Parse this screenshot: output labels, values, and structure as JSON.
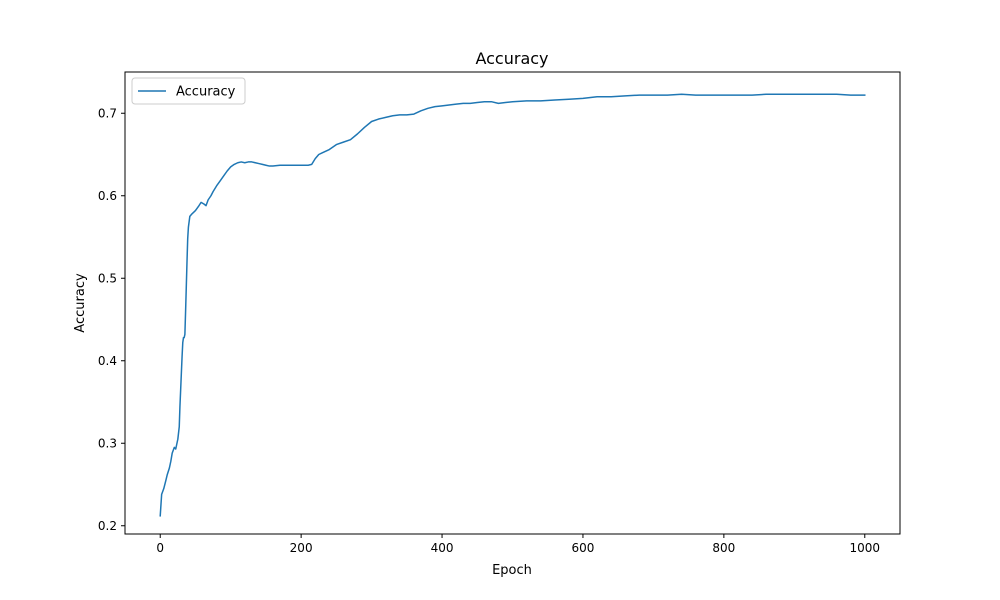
{
  "chart_data": {
    "type": "line",
    "title": "Accuracy",
    "xlabel": "Epoch",
    "ylabel": "Accuracy",
    "xlim": [
      -50,
      1050
    ],
    "ylim": [
      0.19,
      0.75
    ],
    "x_ticks": [
      0,
      200,
      400,
      600,
      800,
      1000
    ],
    "y_ticks": [
      0.2,
      0.3,
      0.4,
      0.5,
      0.6,
      0.7
    ],
    "grid": false,
    "legend_position": "top-left",
    "series": [
      {
        "name": "Accuracy",
        "color": "#1f77b4",
        "points": [
          [
            0,
            0.212
          ],
          [
            2,
            0.238
          ],
          [
            5,
            0.245
          ],
          [
            8,
            0.255
          ],
          [
            10,
            0.262
          ],
          [
            13,
            0.27
          ],
          [
            15,
            0.278
          ],
          [
            17,
            0.288
          ],
          [
            20,
            0.295
          ],
          [
            22,
            0.293
          ],
          [
            25,
            0.305
          ],
          [
            27,
            0.32
          ],
          [
            28,
            0.345
          ],
          [
            29,
            0.365
          ],
          [
            30,
            0.385
          ],
          [
            31,
            0.405
          ],
          [
            32,
            0.422
          ],
          [
            33,
            0.428
          ],
          [
            34,
            0.428
          ],
          [
            35,
            0.432
          ],
          [
            36,
            0.46
          ],
          [
            37,
            0.49
          ],
          [
            38,
            0.52
          ],
          [
            39,
            0.548
          ],
          [
            40,
            0.562
          ],
          [
            42,
            0.575
          ],
          [
            45,
            0.578
          ],
          [
            50,
            0.582
          ],
          [
            55,
            0.588
          ],
          [
            58,
            0.592
          ],
          [
            62,
            0.59
          ],
          [
            65,
            0.588
          ],
          [
            68,
            0.595
          ],
          [
            72,
            0.6
          ],
          [
            75,
            0.605
          ],
          [
            80,
            0.612
          ],
          [
            85,
            0.618
          ],
          [
            90,
            0.624
          ],
          [
            95,
            0.63
          ],
          [
            100,
            0.635
          ],
          [
            105,
            0.638
          ],
          [
            110,
            0.64
          ],
          [
            115,
            0.641
          ],
          [
            120,
            0.64
          ],
          [
            125,
            0.641
          ],
          [
            130,
            0.641
          ],
          [
            135,
            0.64
          ],
          [
            140,
            0.639
          ],
          [
            145,
            0.638
          ],
          [
            150,
            0.637
          ],
          [
            155,
            0.636
          ],
          [
            160,
            0.636
          ],
          [
            170,
            0.637
          ],
          [
            180,
            0.637
          ],
          [
            190,
            0.637
          ],
          [
            200,
            0.637
          ],
          [
            210,
            0.637
          ],
          [
            215,
            0.638
          ],
          [
            220,
            0.645
          ],
          [
            225,
            0.65
          ],
          [
            230,
            0.652
          ],
          [
            240,
            0.656
          ],
          [
            250,
            0.662
          ],
          [
            260,
            0.665
          ],
          [
            270,
            0.668
          ],
          [
            280,
            0.675
          ],
          [
            290,
            0.683
          ],
          [
            300,
            0.69
          ],
          [
            310,
            0.693
          ],
          [
            320,
            0.695
          ],
          [
            330,
            0.697
          ],
          [
            340,
            0.698
          ],
          [
            350,
            0.698
          ],
          [
            360,
            0.699
          ],
          [
            370,
            0.703
          ],
          [
            380,
            0.706
          ],
          [
            390,
            0.708
          ],
          [
            400,
            0.709
          ],
          [
            410,
            0.71
          ],
          [
            420,
            0.711
          ],
          [
            430,
            0.712
          ],
          [
            440,
            0.712
          ],
          [
            450,
            0.713
          ],
          [
            460,
            0.714
          ],
          [
            470,
            0.714
          ],
          [
            480,
            0.712
          ],
          [
            490,
            0.713
          ],
          [
            500,
            0.714
          ],
          [
            520,
            0.715
          ],
          [
            540,
            0.715
          ],
          [
            560,
            0.716
          ],
          [
            580,
            0.717
          ],
          [
            600,
            0.718
          ],
          [
            620,
            0.72
          ],
          [
            640,
            0.72
          ],
          [
            660,
            0.721
          ],
          [
            680,
            0.722
          ],
          [
            700,
            0.722
          ],
          [
            720,
            0.722
          ],
          [
            740,
            0.723
          ],
          [
            760,
            0.722
          ],
          [
            780,
            0.722
          ],
          [
            800,
            0.722
          ],
          [
            820,
            0.722
          ],
          [
            840,
            0.722
          ],
          [
            860,
            0.723
          ],
          [
            880,
            0.723
          ],
          [
            900,
            0.723
          ],
          [
            920,
            0.723
          ],
          [
            940,
            0.723
          ],
          [
            960,
            0.723
          ],
          [
            980,
            0.722
          ],
          [
            1000,
            0.722
          ]
        ]
      }
    ]
  }
}
